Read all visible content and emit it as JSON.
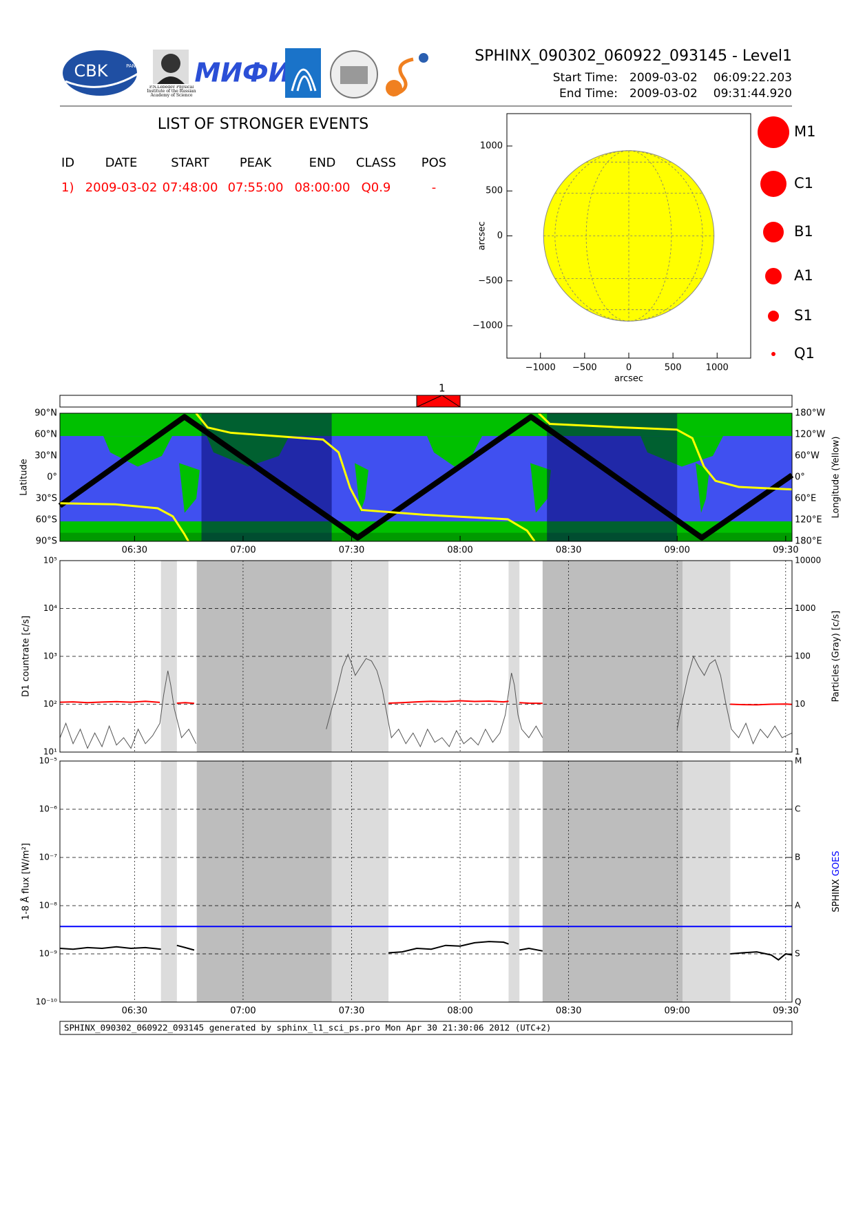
{
  "header": {
    "title": "SPHINX_090302_060922_093145 - Level1",
    "start_label": "Start Time:",
    "start_date": "2009-03-02",
    "start_time": "06:09:22.203",
    "end_label": "End Time:",
    "end_date": "2009-03-02",
    "end_time": "09:31:44.920",
    "logos": [
      "CBK",
      "PAN",
      "P.N.Lebedev Physical Institute of the Russian Academy of Science",
      "МИФИ"
    ]
  },
  "events_table": {
    "title": "LIST OF STRONGER EVENTS",
    "columns": [
      "ID",
      "DATE",
      "START",
      "PEAK",
      "END",
      "CLASS",
      "POS"
    ],
    "rows": [
      [
        "1)",
        "2009-03-02",
        "07:48:00",
        "07:55:00",
        "08:00:00",
        "Q0.9",
        "-"
      ]
    ]
  },
  "footer": "SPHINX_090302_060922_093145 generated by sphinx_l1_sci_ps.pro Mon Apr 30 21:30:06 2012 (UTC+2)",
  "chart_data": [
    {
      "type": "disc",
      "xlabel": "arcsec",
      "ylabel": "arcsec",
      "xlim": [
        -1380,
        1380
      ],
      "ylim": [
        -1360,
        1360
      ],
      "xticks": [
        {
          "value": -1000,
          "label": "−1000"
        },
        {
          "value": -500,
          "label": "−500"
        },
        0,
        500,
        1000
      ],
      "yticks": [
        {
          "value": -1000,
          "label": "−1000"
        },
        {
          "value": -500,
          "label": "−500"
        },
        0,
        500,
        1000
      ],
      "disc_radius": 965,
      "color": "#ffff00",
      "legend": [
        "M1",
        "C1",
        "B1",
        "A1",
        "S1",
        "Q1"
      ],
      "legend_color": "#ff0000"
    },
    {
      "type": "map",
      "ylabel": "Latitude",
      "y2label": "Longitude (Yellow)",
      "xlim": [
        369.37,
        571.75
      ],
      "xticks": [
        {
          "value": 390,
          "label": "06:30"
        },
        {
          "value": 420,
          "label": "07:00"
        },
        {
          "value": 450,
          "label": "07:30"
        },
        {
          "value": 480,
          "label": "08:00"
        },
        {
          "value": 510,
          "label": "08:30"
        },
        {
          "value": 540,
          "label": "09:00"
        },
        {
          "value": 570,
          "label": "09:30"
        }
      ],
      "ylim": [
        -90,
        90
      ],
      "yticks": [
        {
          "value": 90,
          "label": "90°N"
        },
        {
          "value": 60,
          "label": "60°N"
        },
        {
          "value": 30,
          "label": "30°N"
        },
        {
          "value": 0,
          "label": "0°"
        },
        {
          "value": -30,
          "label": "30°S"
        },
        {
          "value": -60,
          "label": "60°S"
        },
        {
          "value": -90,
          "label": "90°S"
        }
      ],
      "y2lim": [
        180,
        -180
      ],
      "y2ticks": [
        {
          "value": -180,
          "label": "180°W"
        },
        {
          "value": -120,
          "label": "120°W"
        },
        {
          "value": -60,
          "label": "60°W"
        },
        {
          "value": 0,
          "label": "0°"
        },
        {
          "value": 60,
          "label": "60°E"
        },
        {
          "value": 120,
          "label": "120°E"
        },
        {
          "value": 180,
          "label": "180°E"
        }
      ],
      "shaded_dark": [
        [
          408.5,
          444.5
        ],
        [
          504.0,
          540.0
        ]
      ],
      "events": [
        {
          "label": "1",
          "start": 468,
          "peak": 475,
          "end": 480
        }
      ],
      "series": [
        {
          "color": "#000000",
          "x": [
            369.37,
            403.8,
            451.7,
            499.6,
            546.8,
            571.75
          ],
          "values": [
            -40,
            85,
            -85,
            85,
            -85,
            3
          ]
        },
        {
          "color": "#ffff00",
          "axis": "y2",
          "x": [
            369.37,
            384.7,
            396.4,
            400.6,
            403.8,
            404.9,
            null,
            407.0,
            410.2,
            416.6,
            442.1,
            446.4,
            449.6,
            452.8,
            469.7,
            493.2,
            498.5,
            500.6,
            null,
            501.7,
            504.8,
            522.9,
            539.9,
            544.2,
            547.4,
            550.6,
            557.0,
            571.75
          ],
          "values": [
            73,
            76,
            87,
            110,
            160,
            180,
            null,
            -180,
            -140,
            -125,
            -106,
            -70,
            30,
            92,
            105,
            118,
            150,
            180,
            null,
            -180,
            -150,
            -141,
            -134,
            -110,
            -30,
            10,
            27,
            34
          ]
        }
      ]
    },
    {
      "type": "line",
      "log": true,
      "ylabel": "D1 countrate [c/s]",
      "y2label": "Particles (Gray) [c/s]",
      "xlim": [
        369.37,
        571.75
      ],
      "xticks": [
        390,
        420,
        450,
        480,
        510,
        540,
        570
      ],
      "ylim": [
        10,
        100000
      ],
      "yticks": [
        {
          "value": 10,
          "label": "10¹"
        },
        {
          "value": 100,
          "label": "10²"
        },
        {
          "value": 1000,
          "label": "10³"
        },
        {
          "value": 10000,
          "label": "10⁴"
        },
        {
          "value": 100000,
          "label": "10⁵"
        }
      ],
      "y2lim": [
        1,
        10000
      ],
      "y2ticks": [
        1,
        10,
        100,
        1000,
        10000
      ],
      "shaded_light": [
        [
          397.3,
          401.7
        ],
        [
          444.5,
          460.2
        ],
        [
          493.4,
          496.4
        ],
        [
          541.5,
          554.7
        ]
      ],
      "shaded_dark": [
        [
          407.2,
          444.5
        ],
        [
          502.8,
          541.5
        ]
      ],
      "series": [
        {
          "color": "#555555",
          "axis": "y2",
          "x": [
            369.4,
            371,
            373,
            375,
            377,
            379,
            381,
            383,
            385,
            387,
            389,
            391,
            393,
            395,
            397,
            398,
            399.2,
            400,
            401,
            402,
            403,
            405,
            407,
            null,
            443,
            444.5,
            446,
            447.5,
            449,
            450,
            451,
            452.5,
            454,
            455.5,
            457,
            458.5,
            460,
            461,
            463,
            465,
            467,
            469,
            471,
            473,
            475,
            477,
            479,
            481,
            483,
            485,
            487,
            489,
            491,
            492.5,
            493.5,
            494.2,
            495,
            496,
            497,
            499,
            501,
            502.8,
            null,
            540,
            541.5,
            543,
            544.5,
            546,
            547.5,
            549,
            550.5,
            552,
            553.5,
            555,
            557,
            559,
            561,
            563,
            565,
            567,
            569,
            571.75
          ],
          "values": [
            2,
            4,
            1.5,
            3,
            1.2,
            2.5,
            1.3,
            3.5,
            1.4,
            2,
            1.2,
            3,
            1.5,
            2.2,
            4,
            15,
            50,
            25,
            8,
            4,
            2,
            3,
            1.5,
            null,
            3,
            8,
            20,
            60,
            110,
            70,
            40,
            60,
            90,
            80,
            50,
            20,
            5,
            2,
            3,
            1.5,
            2.5,
            1.3,
            3,
            1.6,
            2,
            1.3,
            2.8,
            1.5,
            2,
            1.4,
            3,
            1.6,
            2.5,
            6,
            20,
            45,
            25,
            6,
            3,
            2,
            3.5,
            2,
            null,
            3,
            12,
            40,
            100,
            60,
            40,
            70,
            85,
            40,
            10,
            3,
            2,
            4,
            1.5,
            3,
            2,
            3.5,
            2,
            2.5
          ]
        },
        {
          "color": "#ff0000",
          "x": [
            369.4,
            373,
            377,
            381,
            385,
            389,
            393,
            397,
            null,
            401.7,
            404,
            406.5,
            null,
            460.2,
            464,
            468,
            472,
            476,
            480,
            484,
            488,
            492,
            493.4,
            null,
            496.4,
            499,
            502.8,
            null,
            554.7,
            558,
            562,
            566,
            570,
            571.75
          ],
          "values": [
            110,
            112,
            108,
            111,
            113,
            110,
            115,
            109,
            null,
            105,
            108,
            104,
            null,
            105,
            108,
            112,
            115,
            113,
            118,
            114,
            116,
            112,
            115,
            null,
            108,
            105,
            104,
            null,
            100,
            98,
            97,
            100,
            101,
            99
          ]
        }
      ]
    },
    {
      "type": "line",
      "log": true,
      "ylabel": "1-8 Å flux [W/m²]",
      "y2label": [
        "SPHINX",
        "GOES"
      ],
      "xlim": [
        369.37,
        571.75
      ],
      "xticks": [
        {
          "value": 390,
          "label": "06:30"
        },
        {
          "value": 420,
          "label": "07:00"
        },
        {
          "value": 450,
          "label": "07:30"
        },
        {
          "value": 480,
          "label": "08:00"
        },
        {
          "value": 510,
          "label": "08:30"
        },
        {
          "value": 540,
          "label": "09:00"
        },
        {
          "value": 570,
          "label": "09:30"
        }
      ],
      "ylim": [
        1e-10,
        1e-05
      ],
      "yticks": [
        {
          "value": 1e-10,
          "label": "10⁻¹⁰"
        },
        {
          "value": 1e-09,
          "label": "10⁻⁹"
        },
        {
          "value": 1e-08,
          "label": "10⁻⁸"
        },
        {
          "value": 1e-07,
          "label": "10⁻⁷"
        },
        {
          "value": 1e-06,
          "label": "10⁻⁶"
        },
        {
          "value": 1e-05,
          "label": "10⁻⁵"
        }
      ],
      "y2lim": [
        1e-10,
        1e-05
      ],
      "y2ticks": [
        {
          "value": 1e-10,
          "label": "Q"
        },
        {
          "value": 1e-09,
          "label": "S"
        },
        {
          "value": 1e-08,
          "label": "A"
        },
        {
          "value": 1e-07,
          "label": "B"
        },
        {
          "value": 1e-06,
          "label": "C"
        },
        {
          "value": 1e-05,
          "label": "M"
        }
      ],
      "shaded_light": [
        [
          397.3,
          401.7
        ],
        [
          444.5,
          460.2
        ],
        [
          493.4,
          496.4
        ],
        [
          541.5,
          554.7
        ]
      ],
      "shaded_dark": [
        [
          407.2,
          444.5
        ],
        [
          502.8,
          541.5
        ]
      ],
      "series": [
        {
          "name": "SPHINX",
          "color": "#000000",
          "x": [
            369.4,
            373,
            377,
            381,
            385,
            389,
            393,
            397.3,
            null,
            401.7,
            404,
            406.5,
            null,
            460.2,
            464,
            468,
            472,
            476,
            480,
            484,
            488,
            492,
            493.4,
            null,
            496.4,
            499,
            502.8,
            null,
            554.7,
            558,
            562,
            566,
            568,
            570,
            571.75
          ],
          "values": [
            1.3e-09,
            1.25e-09,
            1.35e-09,
            1.3e-09,
            1.4e-09,
            1.3e-09,
            1.35e-09,
            1.25e-09,
            null,
            1.5e-09,
            1.35e-09,
            1.2e-09,
            null,
            1.05e-09,
            1.1e-09,
            1.3e-09,
            1.25e-09,
            1.5e-09,
            1.45e-09,
            1.7e-09,
            1.8e-09,
            1.75e-09,
            1.6e-09,
            null,
            1.2e-09,
            1.3e-09,
            1.15e-09,
            null,
            1e-09,
            1.05e-09,
            1.1e-09,
            9.5e-10,
            7.5e-10,
            1e-09,
            9.5e-10
          ]
        },
        {
          "name": "GOES",
          "color": "#0000ff",
          "x": [
            369.37,
            571.75
          ],
          "values": [
            3.7e-09,
            3.7e-09
          ]
        }
      ]
    }
  ]
}
